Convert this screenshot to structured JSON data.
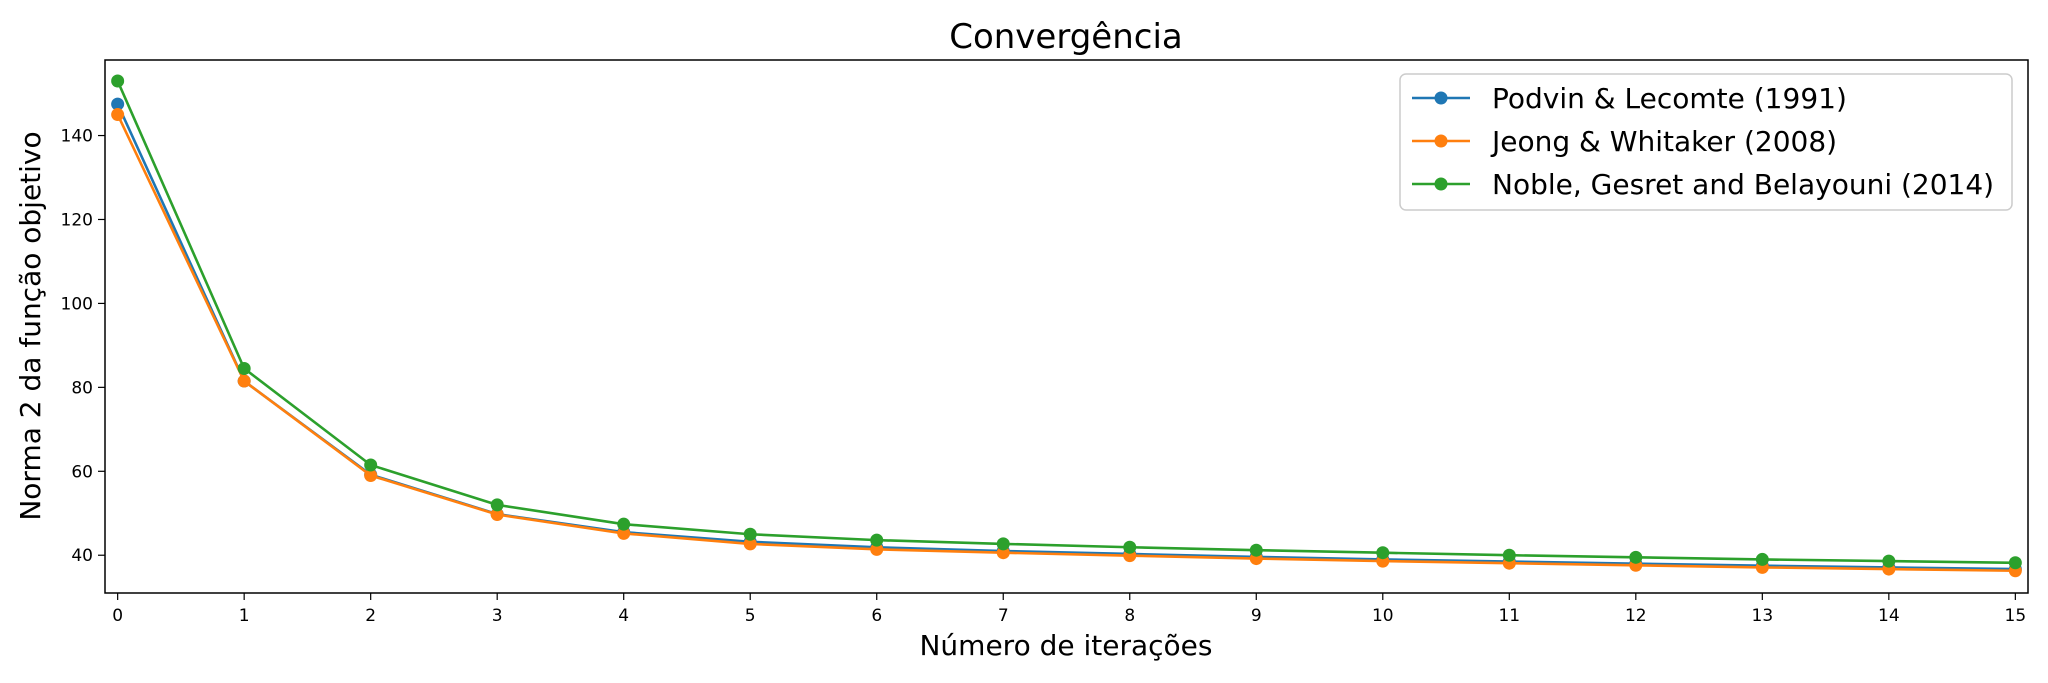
{
  "chart_data": {
    "type": "line",
    "title": "Convergência",
    "xlabel": "Número de iterações",
    "ylabel": "Norma 2 da função objetivo",
    "xlim": [
      -0.1,
      15.1
    ],
    "ylim": [
      31,
      158
    ],
    "x_ticks": [
      0,
      1,
      2,
      3,
      4,
      5,
      6,
      7,
      8,
      9,
      10,
      11,
      12,
      13,
      14,
      15
    ],
    "y_ticks": [
      40,
      60,
      80,
      100,
      120,
      140
    ],
    "grid": false,
    "legend_position": "upper right",
    "x": [
      0,
      1,
      2,
      3,
      4,
      5,
      6,
      7,
      8,
      9,
      10,
      11,
      12,
      13,
      14,
      15
    ],
    "series": [
      {
        "name": "Podvin & Lecomte (1991)",
        "color": "#1f77b4",
        "values": [
          147.5,
          81.5,
          59.2,
          49.8,
          45.5,
          43.2,
          41.9,
          41.0,
          40.3,
          39.6,
          39.0,
          38.5,
          38.0,
          37.5,
          37.1,
          36.7
        ]
      },
      {
        "name": "Jeong & Whitaker (2008)",
        "color": "#ff7f0e",
        "values": [
          145.0,
          81.5,
          59.0,
          49.7,
          45.2,
          42.7,
          41.4,
          40.6,
          39.9,
          39.2,
          38.6,
          38.1,
          37.6,
          37.1,
          36.7,
          36.3
        ]
      },
      {
        "name": "Noble, Gesret and Belayouni (2014)",
        "color": "#2ca02c",
        "values": [
          153.0,
          84.5,
          61.5,
          52.0,
          47.4,
          45.0,
          43.6,
          42.7,
          41.9,
          41.2,
          40.6,
          40.0,
          39.5,
          39.0,
          38.6,
          38.2
        ]
      }
    ]
  }
}
